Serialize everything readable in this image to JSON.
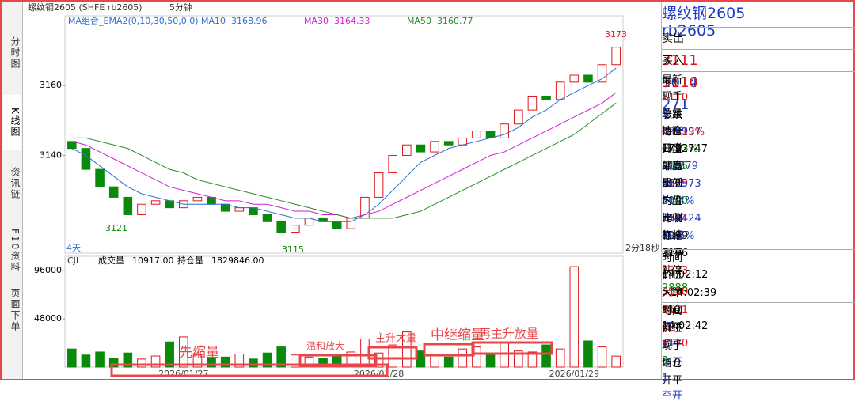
{
  "sidebar_tabs": [
    "分时图",
    "K线图",
    "资讯链",
    "F10资料",
    "页面下单"
  ],
  "chart_data": {
    "type": "candlestick",
    "title": "螺纹钢2605 (SHFE rb2605)",
    "period": "5分钟",
    "indicator": "MA组合_EMA2(0,10,30,50,0,0)",
    "categories": [
      null,
      null,
      null,
      null,
      null,
      null,
      null,
      null,
      "2026/01/27",
      null,
      null,
      null,
      null,
      null,
      null,
      null,
      null,
      null,
      null,
      null,
      null,
      null,
      "2026/01/28",
      null,
      null,
      null,
      null,
      null,
      null,
      null,
      null,
      null,
      null,
      null,
      null,
      null,
      "2026/01/29",
      null,
      null,
      null
    ],
    "open": [
      3144,
      3142,
      3136,
      3131,
      3128,
      3123,
      3126,
      3127,
      3125,
      3127,
      3128,
      3126,
      3124,
      3125,
      3123,
      3121,
      3118,
      3120,
      3122,
      3121,
      3119,
      3122,
      3128,
      3135,
      3140,
      3143,
      3141,
      3144,
      3143,
      3145,
      3147,
      3145,
      3149,
      3153,
      3157,
      3156,
      3161,
      3163,
      3161,
      3166
    ],
    "close": [
      3142,
      3136,
      3131,
      3128,
      3123,
      3126,
      3127,
      3125,
      3127,
      3128,
      3126,
      3124,
      3125,
      3123,
      3121,
      3118,
      3120,
      3122,
      3121,
      3119,
      3122,
      3128,
      3135,
      3140,
      3143,
      3141,
      3144,
      3143,
      3145,
      3147,
      3145,
      3149,
      3153,
      3157,
      3156,
      3161,
      3163,
      3161,
      3166,
      3171
    ],
    "up_color": "#e0161b",
    "down_color": "#0a8a0a",
    "ylim": [
      3112,
      3180
    ],
    "yticks": [
      3140,
      3160
    ],
    "series": [
      {
        "name": "MA10",
        "value": 3168.96,
        "color": "#2f6fd1",
        "values": [
          3142,
          3140,
          3137,
          3134,
          3131,
          3129,
          3128,
          3127,
          3126,
          3126,
          3126,
          3126,
          3125,
          3125,
          3124,
          3123,
          3122,
          3122,
          3121,
          3121,
          3121,
          3123,
          3126,
          3130,
          3134,
          3138,
          3140,
          3142,
          3143,
          3144,
          3145,
          3146,
          3148,
          3151,
          3153,
          3156,
          3158,
          3160,
          3162,
          3165
        ]
      },
      {
        "name": "MA30",
        "value": 3164.33,
        "color": "#d21fcf",
        "values": [
          3144,
          3143,
          3141,
          3139,
          3137,
          3135,
          3133,
          3131,
          3130,
          3129,
          3128,
          3127,
          3127,
          3126,
          3126,
          3125,
          3124,
          3124,
          3123,
          3123,
          3122,
          3123,
          3124,
          3126,
          3128,
          3130,
          3132,
          3134,
          3136,
          3138,
          3140,
          3141,
          3143,
          3145,
          3147,
          3149,
          3151,
          3153,
          3155,
          3158
        ]
      },
      {
        "name": "MA50",
        "value": 3160.77,
        "color": "#2a8a2a",
        "values": [
          3145,
          3145,
          3144,
          3143,
          3142,
          3140,
          3138,
          3136,
          3135,
          3133,
          3132,
          3131,
          3130,
          3129,
          3128,
          3127,
          3126,
          3125,
          3124,
          3123,
          3122,
          3122,
          3122,
          3122,
          3123,
          3124,
          3126,
          3128,
          3130,
          3132,
          3134,
          3136,
          3138,
          3140,
          3142,
          3144,
          3146,
          3149,
          3152,
          3155
        ]
      }
    ],
    "annotations": [
      {
        "text": "3173"
      },
      {
        "text": "3121"
      },
      {
        "text": "3115"
      }
    ],
    "span_label": "4天",
    "countdown": "2分18秒",
    "volume": {
      "name": "CJL",
      "volume_label": "成交量",
      "volume_value": "10917.00",
      "oi_label": "持仓量",
      "oi_value": "1829846.00",
      "values": [
        18000,
        12000,
        15000,
        9000,
        14000,
        8000,
        11000,
        25000,
        30000,
        12000,
        9000,
        10000,
        13000,
        8000,
        14000,
        20000,
        12000,
        10000,
        9000,
        11000,
        15000,
        28000,
        14000,
        22000,
        35000,
        16000,
        12000,
        10000,
        18000,
        20000,
        14000,
        24000,
        16000,
        15000,
        22000,
        18000,
        100000,
        26000,
        20000,
        10917
      ],
      "ylim": [
        0,
        104000
      ],
      "yticks": [
        48000,
        96000
      ],
      "annotations": [
        {
          "text": "先缩量"
        },
        {
          "text": "温和放大"
        },
        {
          "text": "主升大量"
        },
        {
          "text": "中继缩量"
        },
        {
          "text": "再主升放量"
        }
      ]
    }
  },
  "quote": {
    "title": "螺纹钢2605",
    "code": "rb2605",
    "ask": {
      "label": "卖出",
      "price": "3111",
      "size": "1014"
    },
    "bid": {
      "label": "买入",
      "price": "3110",
      "size": "271"
    },
    "rows": [
      [
        {
          "label": "最新",
          "value": "3110",
          "color": "r"
        },
        {
          "label": "涨跌",
          "value": "4/0.13%",
          "color": "r"
        }
      ],
      [
        {
          "label": "现手",
          "value": "3",
          "color": "b"
        },
        {
          "label": "速涨",
          "value": "-0.03%",
          "color": "g"
        }
      ],
      [
        {
          "label": "总量",
          "value": "520997",
          "color": "b"
        },
        {
          "label": "开盘",
          "value": "3105",
          "color": "g"
        }
      ],
      [
        {
          "label": "持仓",
          "value": "1792747",
          "color": "k"
        },
        {
          "label": "最高",
          "value": "3119",
          "color": "r"
        }
      ],
      [
        {
          "label": "日增",
          "value": "-12379",
          "color": "b"
        },
        {
          "label": "最低",
          "value": "3100",
          "color": "g"
        }
      ],
      [
        {
          "label": "外盘",
          "value": "262573",
          "color": "b"
        },
        {
          "label": "均价",
          "value": "3111",
          "color": "r"
        }
      ],
      [
        {
          "label": "比例",
          "value": "50.4%",
          "color": "b"
        },
        {
          "label": "昨收",
          "value": "3099",
          "color": "k"
        }
      ],
      [
        {
          "label": "内盘",
          "value": "258424",
          "color": "b"
        },
        {
          "label": "昨结",
          "value": "3106",
          "color": "k"
        }
      ],
      [
        {
          "label": "比例",
          "value": "49.6%",
          "color": "b"
        },
        {
          "label": "涨停",
          "value": "3323",
          "color": "r"
        }
      ],
      [
        {
          "label": "杠杆",
          "value": "-----",
          "color": "b"
        },
        {
          "label": "跌停",
          "value": "2888",
          "color": "g"
        }
      ]
    ]
  },
  "trades": {
    "header": [
      "时间",
      "价位",
      "大单",
      "增仓",
      "开平"
    ],
    "rows": [
      [
        "14:02:12",
        "3110",
        "25",
        "-5",
        "多平"
      ],
      [
        ">14:02:39",
        "3111",
        "32",
        "1",
        "多开"
      ]
    ],
    "colors": [
      [
        "k",
        "r",
        "g",
        "b",
        "b"
      ],
      [
        "k",
        "r",
        "r",
        "b",
        "b"
      ]
    ],
    "header2": [
      "时间",
      "价位",
      "现手",
      "增仓",
      "开平"
    ],
    "rows2": [
      [
        "14:02:42",
        "3110",
        "3",
        "1",
        "空开"
      ]
    ],
    "colors2": [
      [
        "k",
        "r",
        "g",
        "b",
        "b"
      ]
    ]
  }
}
